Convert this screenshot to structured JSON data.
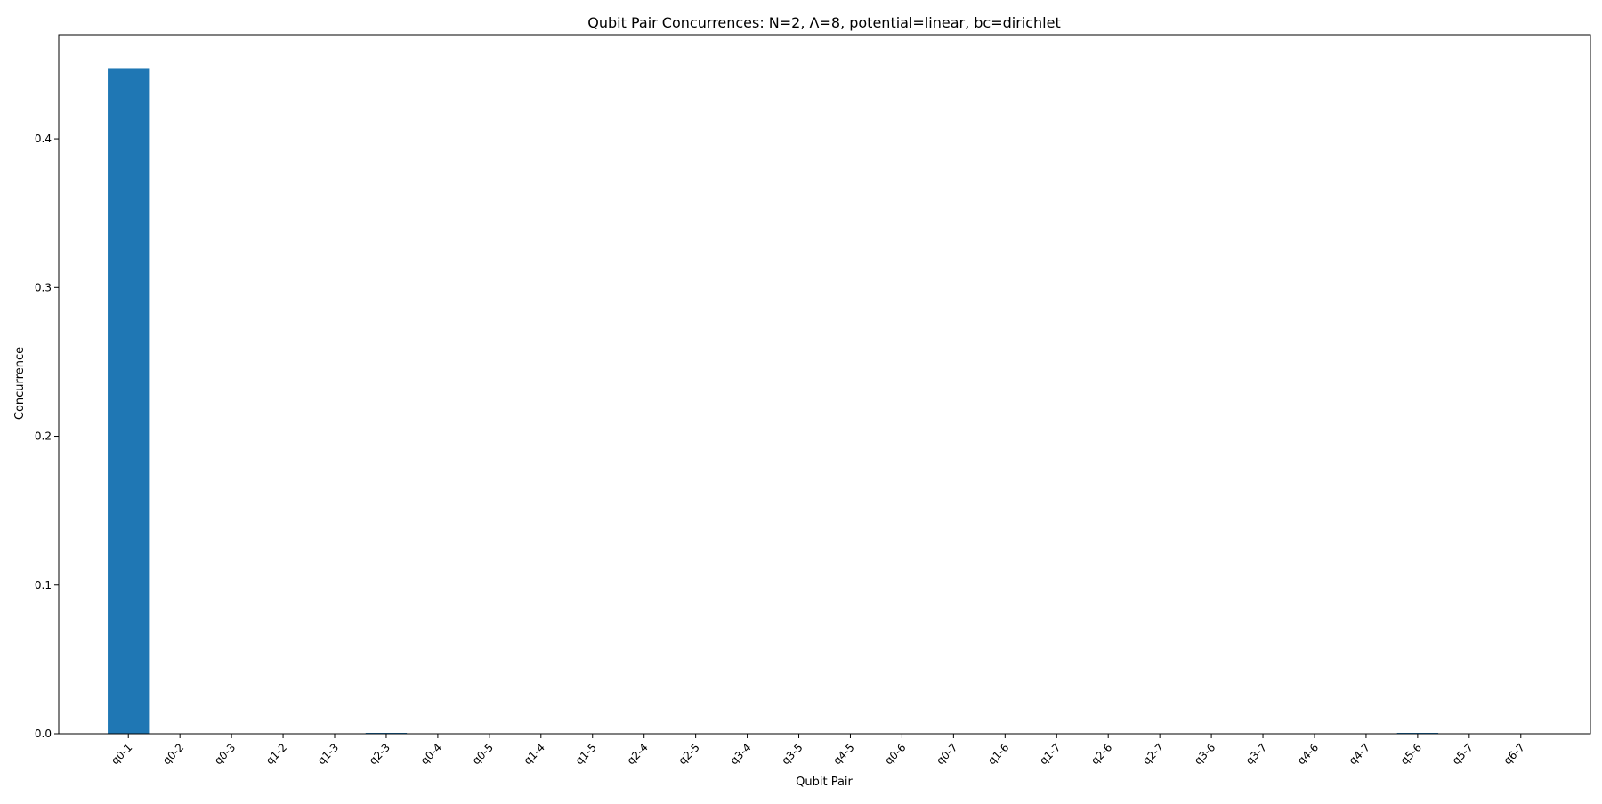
{
  "chart_data": {
    "type": "bar",
    "title": "Qubit Pair Concurrences: N=2, Λ=8, potential=linear, bc=dirichlet",
    "xlabel": "Qubit Pair",
    "ylabel": "Concurrence",
    "ylim": [
      0,
      0.47
    ],
    "yticks": [
      0.0,
      0.1,
      0.2,
      0.3,
      0.4
    ],
    "ytick_labels": [
      "0.0",
      "0.1",
      "0.2",
      "0.3",
      "0.4"
    ],
    "bar_color": "#1f77b4",
    "grid": false,
    "categories": [
      "q0-1",
      "q0-2",
      "q0-3",
      "q1-2",
      "q1-3",
      "q2-3",
      "q0-4",
      "q0-5",
      "q1-4",
      "q1-5",
      "q2-4",
      "q2-5",
      "q3-4",
      "q3-5",
      "q4-5",
      "q0-6",
      "q0-7",
      "q1-6",
      "q1-7",
      "q2-6",
      "q2-7",
      "q3-6",
      "q3-7",
      "q4-6",
      "q4-7",
      "q5-6",
      "q5-7",
      "q6-7"
    ],
    "values": [
      0.447,
      0.0,
      0.0,
      0.0,
      0.0,
      0.0005,
      0.0,
      0.0,
      0.0,
      0.0,
      0.0,
      0.0,
      0.0,
      0.0,
      0.0,
      0.0,
      0.0,
      0.0,
      0.0,
      0.0,
      0.0,
      0.0,
      0.0,
      0.0,
      0.0,
      0.0005,
      0.0,
      0.0
    ]
  }
}
